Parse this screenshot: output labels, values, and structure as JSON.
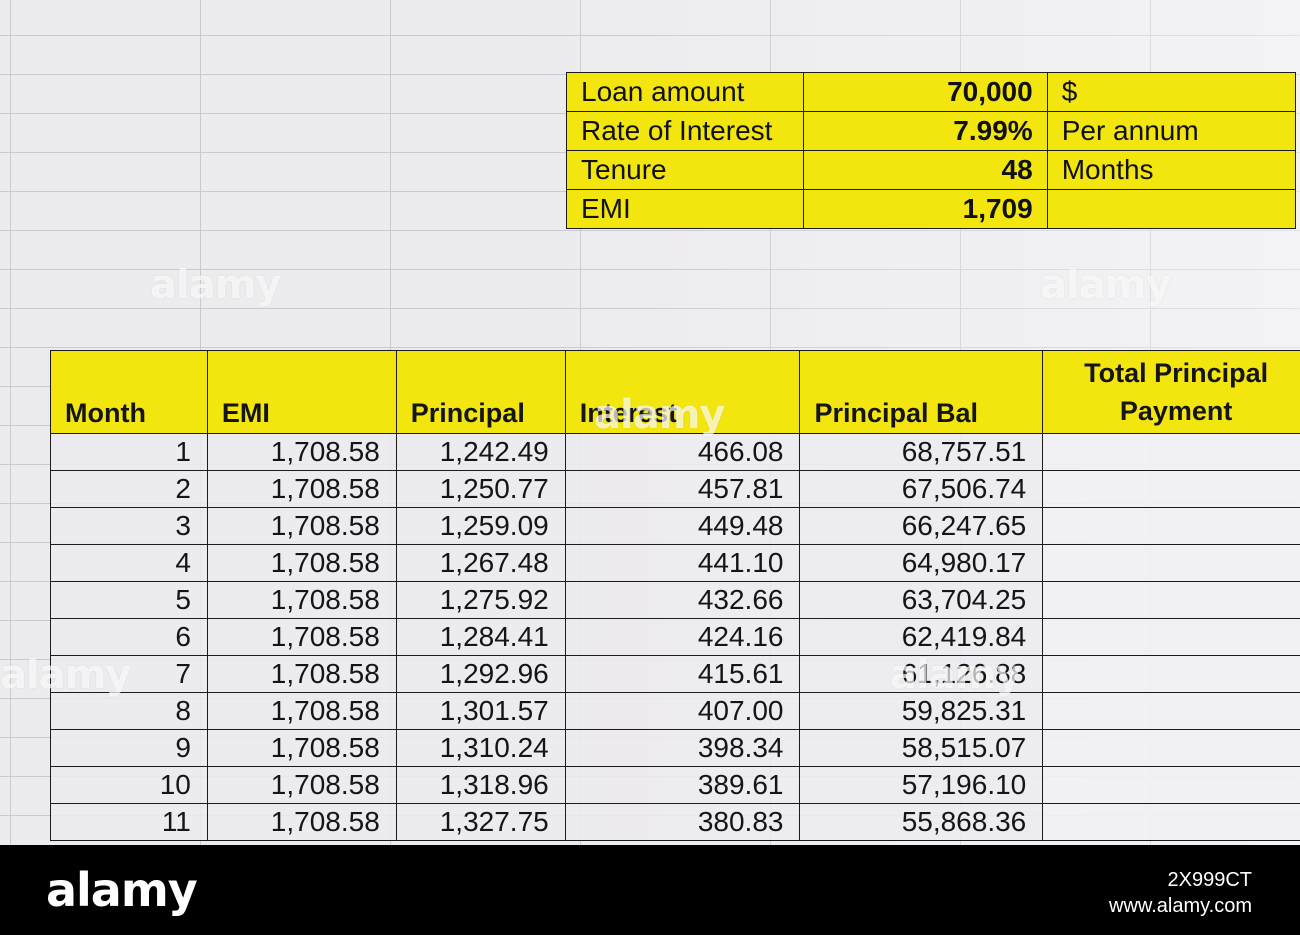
{
  "summary": [
    {
      "label": "Loan amount",
      "value": "70,000",
      "unit": "$"
    },
    {
      "label": "Rate of Interest",
      "value": "7.99%",
      "unit": "Per annum"
    },
    {
      "label": "Tenure",
      "value": "48",
      "unit": "Months"
    },
    {
      "label": "EMI",
      "value": "1,709",
      "unit": ""
    }
  ],
  "table": {
    "headers": [
      "Month",
      "EMI",
      "Principal",
      "Interest",
      "Principal Bal",
      "Total Principal Payment"
    ],
    "rows": [
      [
        "1",
        "1,708.58",
        "1,242.49",
        "466.08",
        "68,757.51",
        ""
      ],
      [
        "2",
        "1,708.58",
        "1,250.77",
        "457.81",
        "67,506.74",
        ""
      ],
      [
        "3",
        "1,708.58",
        "1,259.09",
        "449.48",
        "66,247.65",
        ""
      ],
      [
        "4",
        "1,708.58",
        "1,267.48",
        "441.10",
        "64,980.17",
        ""
      ],
      [
        "5",
        "1,708.58",
        "1,275.92",
        "432.66",
        "63,704.25",
        ""
      ],
      [
        "6",
        "1,708.58",
        "1,284.41",
        "424.16",
        "62,419.84",
        ""
      ],
      [
        "7",
        "1,708.58",
        "1,292.96",
        "415.61",
        "61,126.88",
        ""
      ],
      [
        "8",
        "1,708.58",
        "1,301.57",
        "407.00",
        "59,825.31",
        ""
      ],
      [
        "9",
        "1,708.58",
        "1,310.24",
        "398.34",
        "58,515.07",
        ""
      ],
      [
        "10",
        "1,708.58",
        "1,318.96",
        "389.61",
        "57,196.10",
        ""
      ],
      [
        "11",
        "1,708.58",
        "1,327.75",
        "380.83",
        "55,868.36",
        ""
      ]
    ]
  },
  "watermark": {
    "brand": "alamy",
    "image_id": "2X999CT",
    "site": "www.alamy.com"
  },
  "colors": {
    "header_yellow": "#f3e60f",
    "border": "#1b1b1b",
    "footer_bg": "#000000"
  }
}
